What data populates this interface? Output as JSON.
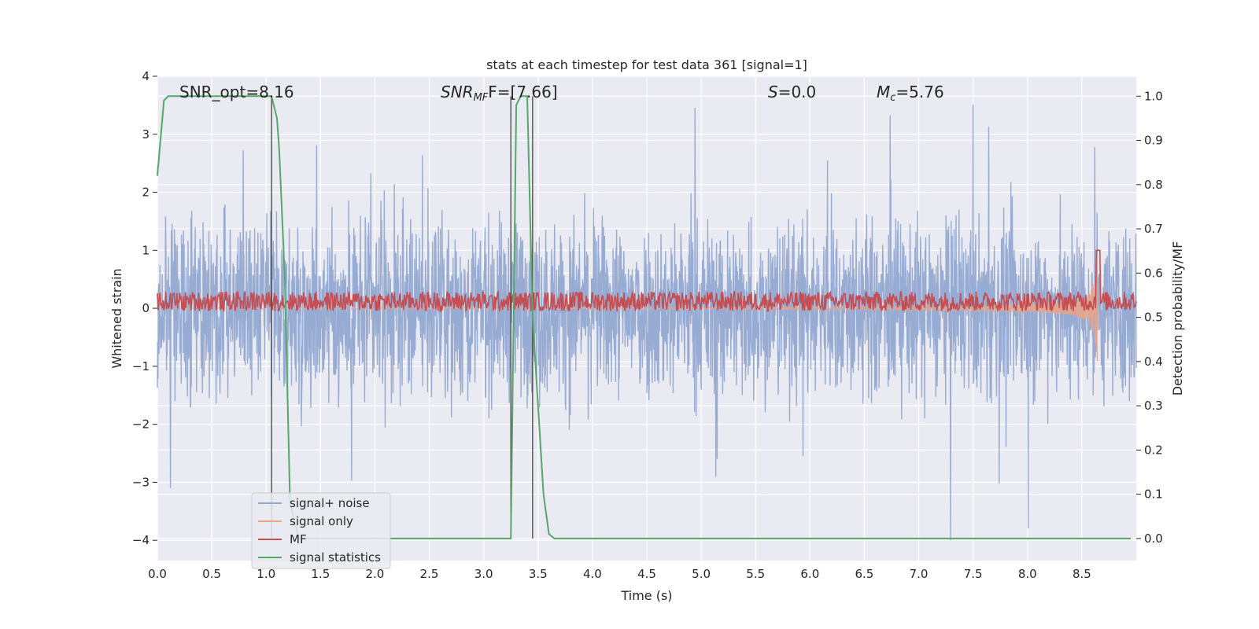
{
  "chart_data": {
    "type": "line",
    "title": "stats at each timestep for test data 361 [signal=1]",
    "xlabel": "Time (s)",
    "ylabel": "Whitened strain",
    "y2label": "Detection probability/MF",
    "xlim": [
      0.0,
      9.0
    ],
    "ylim": [
      -4.35,
      4.0
    ],
    "y2lim": [
      -0.05,
      1.045
    ],
    "x_ticks": [
      "0.0",
      "0.5",
      "1.0",
      "1.5",
      "2.0",
      "2.5",
      "3.0",
      "3.5",
      "4.0",
      "4.5",
      "5.0",
      "5.5",
      "6.0",
      "6.5",
      "7.0",
      "7.5",
      "8.0",
      "8.5"
    ],
    "y_ticks": [
      "4",
      "3",
      "2",
      "1",
      "0",
      "−1",
      "−2",
      "−3",
      "−4"
    ],
    "y2_ticks": [
      "1.0",
      "0.9",
      "0.8",
      "0.7",
      "0.6",
      "0.5",
      "0.4",
      "0.3",
      "0.2",
      "0.1",
      "0.0"
    ],
    "grid": true,
    "legend_position": "lower-left",
    "annotations": {
      "snr_opt": "SNR_opt=8.16",
      "snr_mf_main": "SNR",
      "snr_mf_sub": "MF",
      "snr_mf_value": "F=[7.66]",
      "s_symbol": "S",
      "s_value": "=0.0",
      "mc_main": "M",
      "mc_sub": "c",
      "mc_value": "=5.76"
    },
    "series": [
      {
        "name": "signal+ noise",
        "color": "#92a8d1",
        "amplitude_range": [
          -4.0,
          3.65
        ]
      },
      {
        "name": "signal only",
        "color": "#e8a48a",
        "chirp_peak_time": 8.65,
        "chirp_peak_amplitude": 1.0
      },
      {
        "name": "MF",
        "color": "#c44e52",
        "baseline": 0.12,
        "peak_time": 8.65,
        "peak_value": 1.0
      },
      {
        "name": "signal statistics",
        "color": "#55a868",
        "axis": "right",
        "x": [
          0.0,
          0.06,
          0.1,
          1.05,
          1.1,
          1.12,
          1.17,
          1.22,
          1.3,
          3.2,
          3.25,
          3.3,
          3.34,
          3.4,
          3.45,
          3.5,
          3.55,
          3.6,
          3.65,
          8.95
        ],
        "y": [
          0.82,
          0.99,
          1.0,
          1.0,
          0.95,
          0.88,
          0.6,
          0.08,
          0.0,
          0.0,
          0.0,
          0.98,
          1.0,
          1.0,
          0.5,
          0.3,
          0.1,
          0.01,
          0.0,
          0.0
        ]
      }
    ],
    "vertical_markers": [
      1.05,
      3.25,
      3.45
    ]
  }
}
